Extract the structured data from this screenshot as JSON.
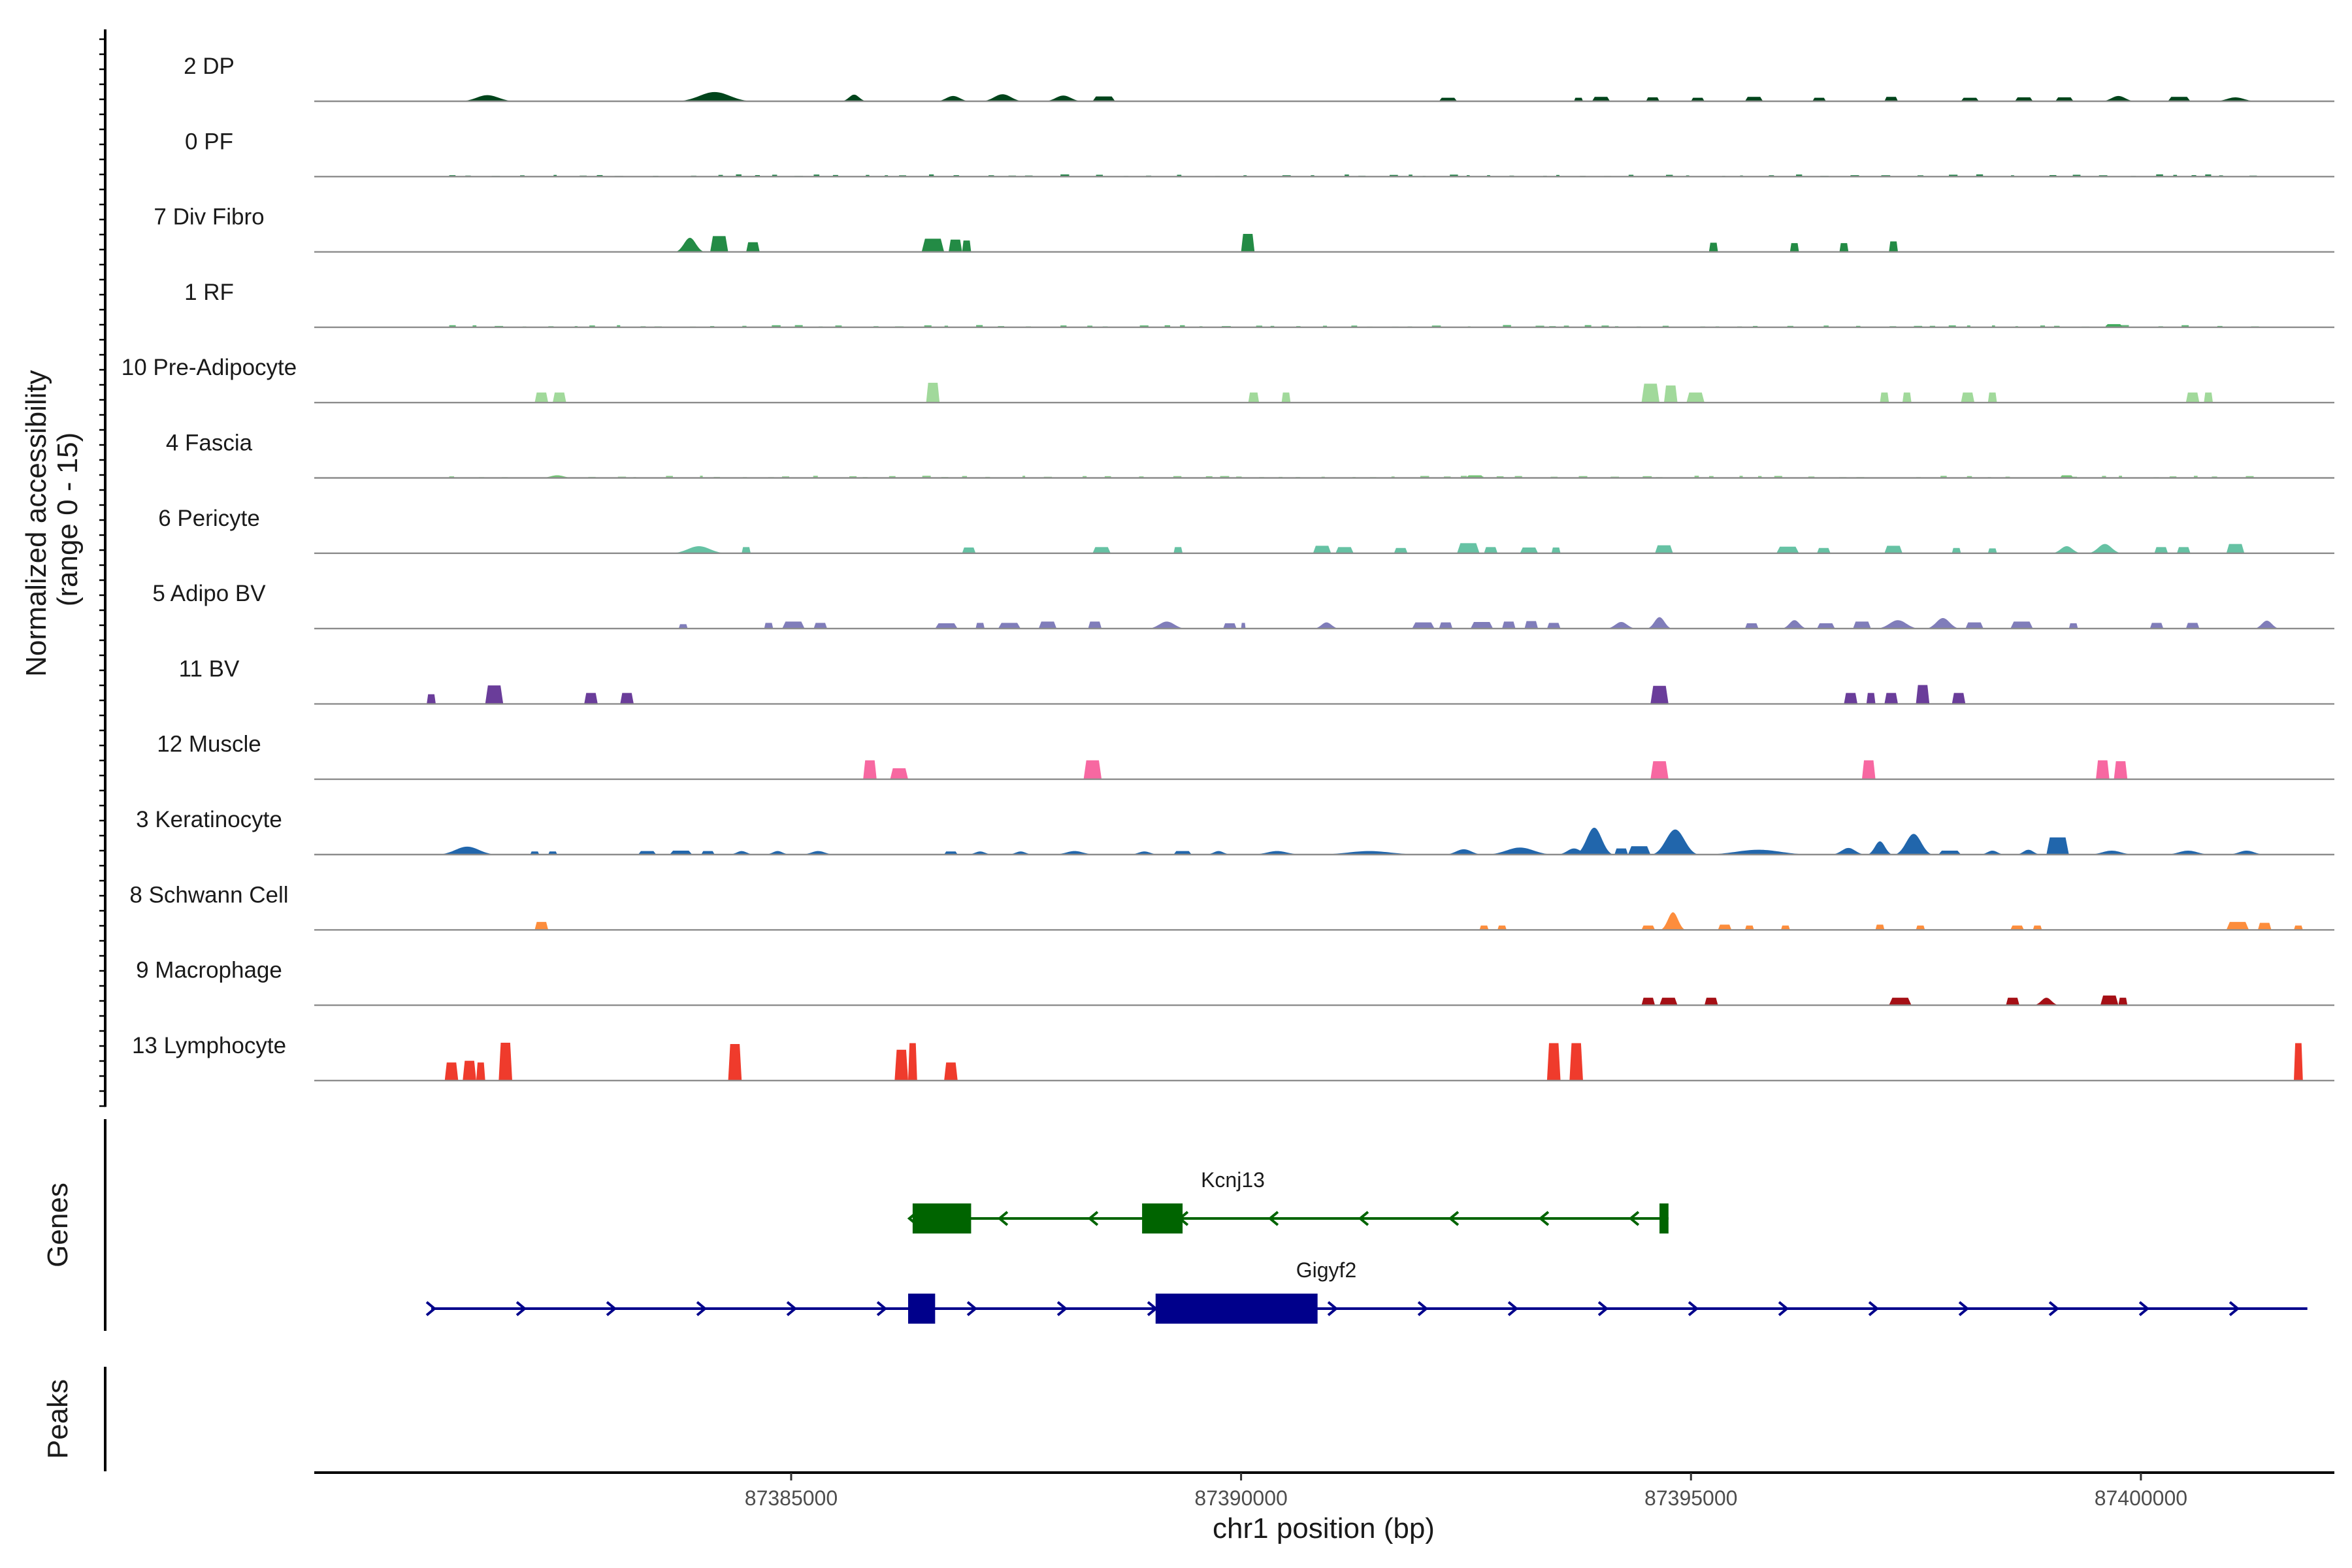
{
  "chart_data": {
    "type": "area",
    "subtype": "genome-browser coverage tracks",
    "xlabel": "chr1 position (bp)",
    "ylabel": "Normalized accessibility\n(range 0 - 15)",
    "ylim": [
      0,
      15
    ],
    "xlim": [
      87379700,
      87402150
    ],
    "x_ticks": [
      87385000,
      87390000,
      87395000,
      87400000
    ],
    "x_tick_labels": [
      "87385000",
      "87390000",
      "87395000",
      "87400000"
    ],
    "grid": false,
    "tracks": [
      {
        "name": "2 DP",
        "color": "#00441b",
        "peaks": [
          [
            87381300,
            87381950,
            1.4
          ],
          [
            87383700,
            87384600,
            2.1
          ],
          [
            87385550,
            87385850,
            1.5
          ],
          [
            87386600,
            87387000,
            1.2
          ],
          [
            87387100,
            87387600,
            1.6
          ],
          [
            87387800,
            87388250,
            1.3
          ],
          [
            87388350,
            87388600,
            1.1
          ],
          [
            87392200,
            87392400,
            0.8
          ],
          [
            87393700,
            87393800,
            0.8
          ],
          [
            87393900,
            87394100,
            1.0
          ],
          [
            87394500,
            87394650,
            0.9
          ],
          [
            87395000,
            87395150,
            0.8
          ],
          [
            87395600,
            87395800,
            1.0
          ],
          [
            87396350,
            87396500,
            0.8
          ],
          [
            87397150,
            87397300,
            1.0
          ],
          [
            87398000,
            87398200,
            0.8
          ],
          [
            87398600,
            87398800,
            0.9
          ],
          [
            87399050,
            87399250,
            0.9
          ],
          [
            87399550,
            87399950,
            1.2
          ],
          [
            87400300,
            87400550,
            1.0
          ],
          [
            87400800,
            87401300,
            0.9
          ]
        ]
      },
      {
        "name": "0 PF",
        "color": "#006d2c",
        "noise": 0.35,
        "peaks": []
      },
      {
        "name": "7 Div Fibro",
        "color": "#238b45",
        "peaks": [
          [
            87383700,
            87384050,
            3.2
          ],
          [
            87384100,
            87384300,
            3.6
          ],
          [
            87384500,
            87384650,
            2.2
          ],
          [
            87386450,
            87386700,
            3.0
          ],
          [
            87386750,
            87386900,
            2.8
          ],
          [
            87386900,
            87387000,
            2.6
          ],
          [
            87390000,
            87390150,
            4.1
          ],
          [
            87395200,
            87395300,
            2.1
          ],
          [
            87396100,
            87396200,
            2.0
          ],
          [
            87396650,
            87396750,
            2.0
          ],
          [
            87397200,
            87397300,
            2.4
          ]
        ]
      },
      {
        "name": "1 RF",
        "color": "#41ab5d",
        "noise": 0.35,
        "peaks": [
          [
            87399600,
            87399800,
            0.7
          ]
        ]
      },
      {
        "name": "10 Pre-Adipocyte",
        "color": "#a1d99b",
        "peaks": [
          [
            87382150,
            87382300,
            2.3
          ],
          [
            87382350,
            87382500,
            2.3
          ],
          [
            87386500,
            87386650,
            4.5
          ],
          [
            87390080,
            87390200,
            2.3
          ],
          [
            87390450,
            87390550,
            2.3
          ],
          [
            87394450,
            87394650,
            4.3
          ],
          [
            87394700,
            87394850,
            3.9
          ],
          [
            87394950,
            87395150,
            2.3
          ],
          [
            87397100,
            87397200,
            2.3
          ],
          [
            87397350,
            87397450,
            2.3
          ],
          [
            87398000,
            87398150,
            2.3
          ],
          [
            87398300,
            87398400,
            2.3
          ],
          [
            87400500,
            87400650,
            2.3
          ],
          [
            87400700,
            87400800,
            2.3
          ]
        ]
      },
      {
        "name": "4 Fascia",
        "color": "#74c476",
        "noise": 0.35,
        "peaks": [
          [
            87382200,
            87382600,
            0.6
          ],
          [
            87392500,
            87392700,
            0.6
          ],
          [
            87399100,
            87399250,
            0.6
          ]
        ]
      },
      {
        "name": "6 Pericyte",
        "color": "#66c2a4",
        "peaks": [
          [
            87383650,
            87384300,
            1.6
          ],
          [
            87384450,
            87384550,
            1.4
          ],
          [
            87386900,
            87387050,
            1.3
          ],
          [
            87388350,
            87388550,
            1.4
          ],
          [
            87389250,
            87389350,
            1.4
          ],
          [
            87390800,
            87391000,
            1.7
          ],
          [
            87391050,
            87391250,
            1.4
          ],
          [
            87391700,
            87391850,
            1.2
          ],
          [
            87392400,
            87392650,
            2.3
          ],
          [
            87392700,
            87392850,
            1.4
          ],
          [
            87393100,
            87393300,
            1.3
          ],
          [
            87393450,
            87393550,
            1.3
          ],
          [
            87394600,
            87394800,
            1.8
          ],
          [
            87395950,
            87396200,
            1.5
          ],
          [
            87396400,
            87396550,
            1.2
          ],
          [
            87397150,
            87397350,
            1.7
          ],
          [
            87397900,
            87398000,
            1.2
          ],
          [
            87398300,
            87398400,
            1.1
          ],
          [
            87399000,
            87399350,
            1.6
          ],
          [
            87399400,
            87399800,
            2.1
          ],
          [
            87400150,
            87400300,
            1.4
          ],
          [
            87400400,
            87400550,
            1.4
          ],
          [
            87400950,
            87401150,
            2.1
          ]
        ]
      },
      {
        "name": "5 Adipo BV",
        "color": "#807dba",
        "peaks": [
          [
            87383750,
            87383850,
            1.0
          ],
          [
            87384700,
            87384800,
            1.3
          ],
          [
            87384900,
            87385150,
            1.6
          ],
          [
            87385250,
            87385400,
            1.3
          ],
          [
            87386600,
            87386850,
            1.2
          ],
          [
            87387050,
            87387150,
            1.3
          ],
          [
            87387300,
            87387550,
            1.3
          ],
          [
            87387750,
            87387950,
            1.6
          ],
          [
            87388300,
            87388450,
            1.6
          ],
          [
            87388950,
            87389400,
            1.6
          ],
          [
            87389800,
            87389950,
            1.2
          ],
          [
            87390000,
            87390050,
            1.3
          ],
          [
            87390800,
            87391100,
            1.4
          ],
          [
            87391900,
            87392150,
            1.4
          ],
          [
            87392200,
            87392350,
            1.4
          ],
          [
            87392550,
            87392800,
            1.5
          ],
          [
            87392900,
            87393050,
            1.6
          ],
          [
            87393150,
            87393300,
            1.7
          ],
          [
            87393400,
            87393550,
            1.3
          ],
          [
            87394050,
            87394400,
            1.5
          ],
          [
            87394500,
            87394800,
            2.6
          ],
          [
            87395600,
            87395750,
            1.2
          ],
          [
            87396000,
            87396300,
            1.9
          ],
          [
            87396400,
            87396600,
            1.2
          ],
          [
            87396800,
            87397000,
            1.6
          ],
          [
            87397050,
            87397550,
            1.9
          ],
          [
            87397600,
            87398000,
            2.4
          ],
          [
            87398050,
            87398250,
            1.4
          ],
          [
            87398550,
            87398800,
            1.6
          ],
          [
            87399200,
            87399300,
            1.2
          ],
          [
            87400100,
            87400250,
            1.3
          ],
          [
            87400500,
            87400650,
            1.3
          ],
          [
            87401250,
            87401550,
            1.8
          ]
        ]
      },
      {
        "name": "11 BV",
        "color": "#6a3d9a",
        "peaks": [
          [
            87380950,
            87381050,
            2.2
          ],
          [
            87381600,
            87381800,
            4.2
          ],
          [
            87382700,
            87382850,
            2.5
          ],
          [
            87383100,
            87383250,
            2.5
          ],
          [
            87394550,
            87394750,
            4.1
          ],
          [
            87396700,
            87396850,
            2.5
          ],
          [
            87396950,
            87397050,
            2.5
          ],
          [
            87397150,
            87397300,
            2.5
          ],
          [
            87397500,
            87397650,
            4.3
          ],
          [
            87397900,
            87398050,
            2.5
          ]
        ]
      },
      {
        "name": "12 Muscle",
        "color": "#f768a1",
        "peaks": [
          [
            87385800,
            87385950,
            4.3
          ],
          [
            87386100,
            87386300,
            2.5
          ],
          [
            87388250,
            87388450,
            4.3
          ],
          [
            87394550,
            87394750,
            4.1
          ],
          [
            87396900,
            87397050,
            4.3
          ],
          [
            87399500,
            87399650,
            4.3
          ],
          [
            87399700,
            87399850,
            4.1
          ]
        ]
      },
      {
        "name": "3 Keratinocyte",
        "color": "#2166ac",
        "peaks": [
          [
            87381050,
            87381750,
            1.8
          ],
          [
            87382100,
            87382200,
            0.7
          ],
          [
            87382300,
            87382400,
            0.7
          ],
          [
            87383300,
            87383500,
            0.8
          ],
          [
            87383650,
            87383900,
            0.9
          ],
          [
            87384000,
            87384150,
            0.8
          ],
          [
            87384300,
            87384600,
            0.8
          ],
          [
            87384700,
            87385000,
            0.8
          ],
          [
            87385100,
            87385500,
            0.8
          ],
          [
            87386700,
            87386850,
            0.7
          ],
          [
            87386950,
            87387250,
            0.7
          ],
          [
            87387400,
            87387700,
            0.7
          ],
          [
            87387900,
            87388400,
            0.8
          ],
          [
            87388750,
            87389100,
            0.7
          ],
          [
            87389250,
            87389450,
            0.8
          ],
          [
            87389600,
            87389900,
            0.8
          ],
          [
            87390100,
            87390700,
            0.8
          ],
          [
            87390800,
            87392050,
            0.8
          ],
          [
            87392250,
            87392700,
            1.2
          ],
          [
            87392700,
            87393500,
            1.6
          ],
          [
            87393500,
            87393900,
            1.4
          ],
          [
            87393700,
            87394150,
            6.1
          ],
          [
            87394150,
            87394300,
            1.4
          ],
          [
            87394300,
            87394550,
            1.9
          ],
          [
            87394550,
            87395100,
            5.7
          ],
          [
            87395100,
            87396400,
            1.1
          ],
          [
            87396550,
            87396950,
            1.5
          ],
          [
            87396950,
            87397250,
            3.0
          ],
          [
            87397250,
            87397700,
            4.7
          ],
          [
            87397750,
            87398000,
            0.9
          ],
          [
            87398200,
            87398500,
            0.9
          ],
          [
            87398600,
            87398900,
            1.1
          ],
          [
            87398950,
            87399200,
            3.9
          ],
          [
            87399400,
            87399950,
            0.9
          ],
          [
            87400250,
            87400800,
            0.9
          ],
          [
            87400950,
            87401400,
            0.9
          ]
        ]
      },
      {
        "name": "8 Schwann Cell",
        "color": "#fd8d3c",
        "peaks": [
          [
            87382150,
            87382300,
            1.8
          ],
          [
            87392650,
            87392750,
            1.0
          ],
          [
            87392850,
            87392950,
            1.0
          ],
          [
            87394450,
            87394600,
            1.0
          ],
          [
            87394650,
            87394950,
            4.0
          ],
          [
            87395300,
            87395450,
            1.2
          ],
          [
            87395600,
            87395700,
            1.0
          ],
          [
            87396000,
            87396100,
            1.0
          ],
          [
            87397050,
            87397150,
            1.2
          ],
          [
            87397500,
            87397600,
            1.0
          ],
          [
            87398550,
            87398700,
            1.0
          ],
          [
            87398800,
            87398900,
            1.0
          ],
          [
            87400950,
            87401200,
            1.8
          ],
          [
            87401300,
            87401450,
            1.6
          ],
          [
            87401700,
            87401800,
            1.0
          ]
        ]
      },
      {
        "name": "9 Macrophage",
        "color": "#a50f15",
        "peaks": [
          [
            87394450,
            87394600,
            1.7
          ],
          [
            87394650,
            87394850,
            1.7
          ],
          [
            87395150,
            87395300,
            1.7
          ],
          [
            87397200,
            87397450,
            1.7
          ],
          [
            87398500,
            87398650,
            1.7
          ],
          [
            87398800,
            87399100,
            1.7
          ],
          [
            87399550,
            87399750,
            2.2
          ],
          [
            87399750,
            87399850,
            1.7
          ]
        ]
      },
      {
        "name": "13 Lymphocyte",
        "color": "#ef3b2c",
        "peaks": [
          [
            87381150,
            87381300,
            4.1
          ],
          [
            87381350,
            87381500,
            4.5
          ],
          [
            87381500,
            87381600,
            4.1
          ],
          [
            87381750,
            87381900,
            8.6
          ],
          [
            87384300,
            87384450,
            8.3
          ],
          [
            87386150,
            87386300,
            7.0
          ],
          [
            87386300,
            87386400,
            8.5
          ],
          [
            87386700,
            87386850,
            4.1
          ],
          [
            87393400,
            87393550,
            8.5
          ],
          [
            87393650,
            87393800,
            8.5
          ],
          [
            87401700,
            87401800,
            8.5
          ]
        ]
      }
    ],
    "genes": [
      {
        "name": "Kcnj13",
        "strand": "-",
        "color": "#006400",
        "start": 87386350,
        "end": 87394750,
        "exons": [
          [
            87386350,
            87387000
          ],
          [
            87388900,
            87389350
          ],
          [
            87394650,
            87394750
          ]
        ]
      },
      {
        "name": "Gigyf2",
        "strand": "+",
        "color": "#00008b",
        "start": 87381000,
        "end": 87401850,
        "exons": [
          [
            87386300,
            87386600
          ],
          [
            87389050,
            87390850
          ]
        ]
      }
    ],
    "panel_labels": {
      "genes": "Genes",
      "peaks": "Peaks"
    }
  }
}
